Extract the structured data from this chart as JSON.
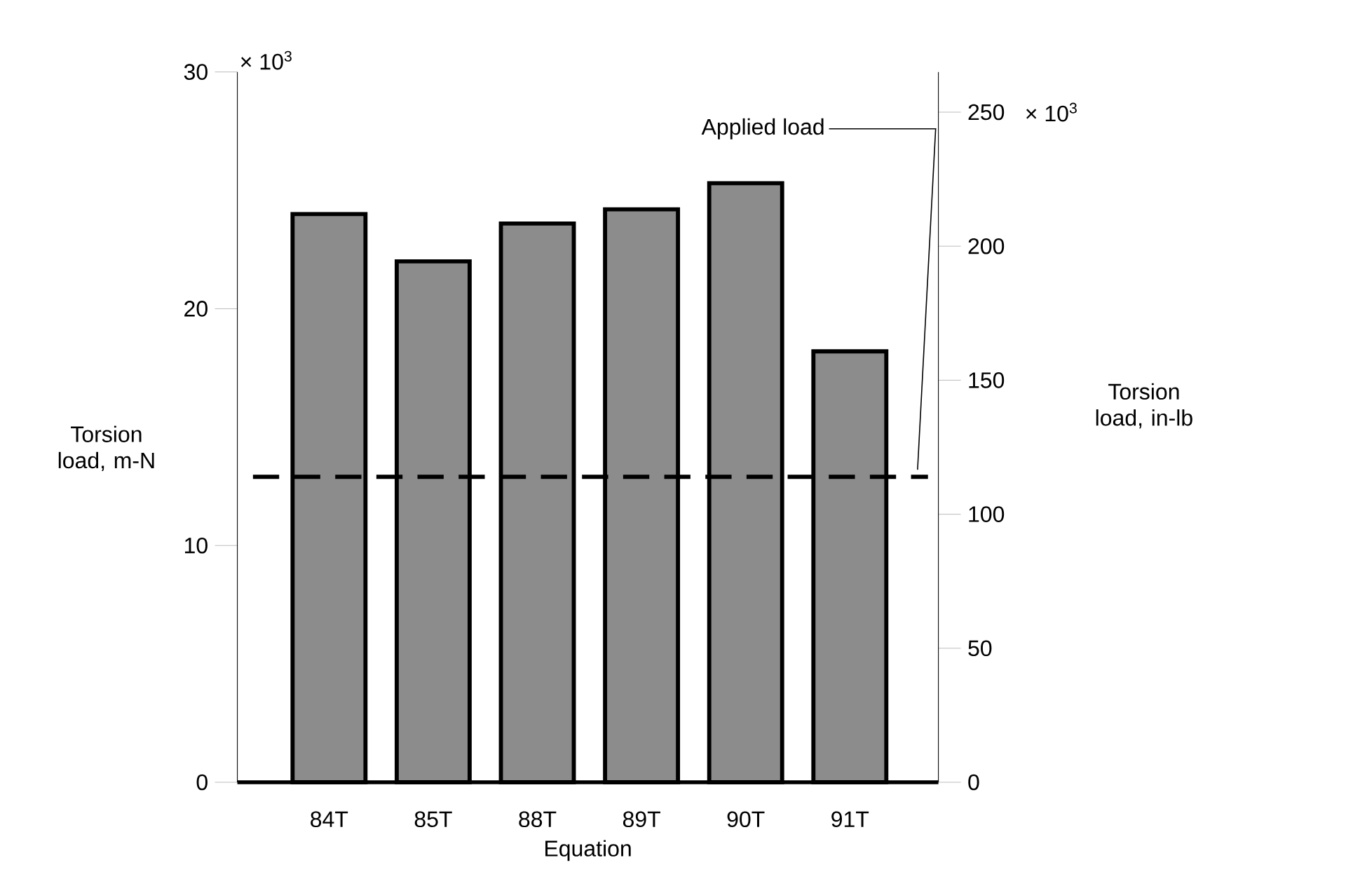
{
  "chart_data": {
    "type": "bar",
    "xlabel": "Equation",
    "ylabel": "Torsion load, m-N",
    "y2label": "Torsion load, in-lb",
    "categories": [
      "84T",
      "85T",
      "88T",
      "89T",
      "90T",
      "91T"
    ],
    "values": [
      24.0,
      22.0,
      23.6,
      24.2,
      25.3,
      18.2
    ],
    "color": "#8c8c8c",
    "ylim": [
      0,
      30
    ],
    "yticks": [
      0,
      10,
      20,
      30
    ],
    "y2lim": [
      0,
      265
    ],
    "y2ticks": [
      0,
      50,
      100,
      150,
      200,
      250
    ],
    "annotations": [
      "× 10$^{3}$",
      "× 10$^{3}$"
    ],
    "ref_lines": [
      {
        "axis": "y",
        "value": 12.9,
        "label": "Applied load",
        "line_style": "dashed",
        "color": "#000000"
      }
    ],
    "grid": false
  }
}
